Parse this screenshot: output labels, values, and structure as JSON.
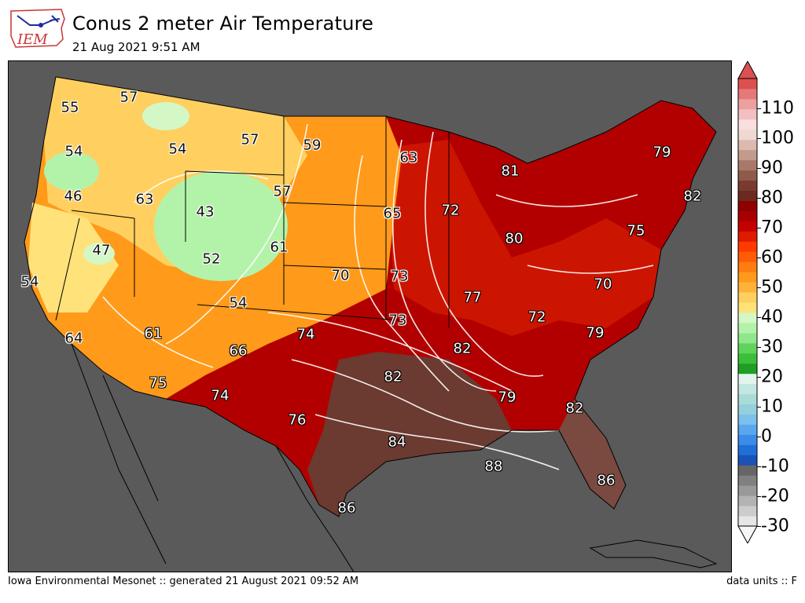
{
  "header": {
    "logo_text": "IEM",
    "title": "Conus 2 meter Air Temperature",
    "subtitle": "21 Aug 2021 9:51 AM"
  },
  "footer": {
    "left": "Iowa Environmental Mesonet :: generated 21 August 2021 09:52 AM",
    "right": "data units :: F"
  },
  "colorbar": {
    "labels": [
      "-30",
      "-20",
      "-10",
      "0",
      "10",
      "20",
      "30",
      "40",
      "50",
      "60",
      "70",
      "80",
      "90",
      "100",
      "110"
    ],
    "min": -30,
    "max": 120,
    "colors": [
      "#e6e6e6",
      "#cccccc",
      "#b3b3b3",
      "#999999",
      "#808080",
      "#666666",
      "#1a52b5",
      "#1f6fd8",
      "#3b8ce8",
      "#5aa7ee",
      "#7cc0ee",
      "#93d0dc",
      "#a9dcd8",
      "#c3e8e1",
      "#e2f4ec",
      "#1e9e23",
      "#3bbf3b",
      "#5fd35a",
      "#8ee88b",
      "#b3f3a9",
      "#d3f8c6",
      "#ffe27a",
      "#ffd060",
      "#ffb23a",
      "#ff9a1a",
      "#ff7c10",
      "#ff5c08",
      "#ff3a00",
      "#e01a00",
      "#c40000",
      "#a80000",
      "#8f0000",
      "#6a2a20",
      "#7a3a30",
      "#8f5a4a",
      "#a8786a",
      "#c39a8c",
      "#dcbab0",
      "#f0d8d2",
      "#f8e0e0",
      "#f2c0c0",
      "#eca0a0",
      "#e67878",
      "#dc5050"
    ]
  },
  "map_labels": [
    {
      "value": "55"
    },
    {
      "value": "57"
    },
    {
      "value": "54"
    },
    {
      "value": "57"
    },
    {
      "value": "59"
    },
    {
      "value": "54"
    },
    {
      "value": "63"
    },
    {
      "value": "46"
    },
    {
      "value": "63"
    },
    {
      "value": "43"
    },
    {
      "value": "57"
    },
    {
      "value": "65"
    },
    {
      "value": "72"
    },
    {
      "value": "81"
    },
    {
      "value": "79"
    },
    {
      "value": "82"
    },
    {
      "value": "75"
    },
    {
      "value": "47"
    },
    {
      "value": "52"
    },
    {
      "value": "61"
    },
    {
      "value": "80"
    },
    {
      "value": "54"
    },
    {
      "value": "70"
    },
    {
      "value": "73"
    },
    {
      "value": "77"
    },
    {
      "value": "70"
    },
    {
      "value": "54"
    },
    {
      "value": "73"
    },
    {
      "value": "72"
    },
    {
      "value": "64"
    },
    {
      "value": "61"
    },
    {
      "value": "74"
    },
    {
      "value": "82"
    },
    {
      "value": "79"
    },
    {
      "value": "66"
    },
    {
      "value": "82"
    },
    {
      "value": "75"
    },
    {
      "value": "74"
    },
    {
      "value": "79"
    },
    {
      "value": "82"
    },
    {
      "value": "76"
    },
    {
      "value": "84"
    },
    {
      "value": "88"
    },
    {
      "value": "86"
    },
    {
      "value": "86"
    }
  ]
}
